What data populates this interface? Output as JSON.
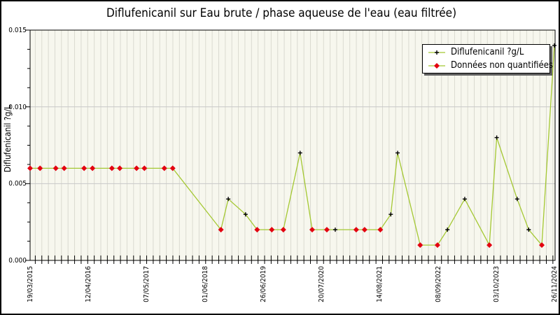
{
  "window": {
    "border_color": "#000000",
    "background": "#ffffff"
  },
  "colors": {
    "plot_background": "#f7f7ee",
    "stripe": "#dadad0",
    "grid": "#c8c8c8",
    "frame": "#000000",
    "line": "#a4c832",
    "marker_quantified": "#000000",
    "marker_non_quantified": "#e30010",
    "legend_shadow": "#606060",
    "text": "#000000"
  },
  "chart_data": {
    "type": "line",
    "title": "Diflufenicanil sur Eau brute / phase aqueuse de l'eau (eau filtrée)",
    "ylabel": "Diflufenicanil ?g/L",
    "xlabel": "",
    "ylim": [
      0,
      0.015
    ],
    "ytick_values": [
      0,
      0.005,
      0.01,
      0.015
    ],
    "ytick_labels": [
      "0.000",
      "0.005",
      "0.010",
      "0.015"
    ],
    "y_minor_step": 0.00125,
    "xtick_labels": [
      "19/03/2015",
      "12/04/2016",
      "07/05/2017",
      "01/06/2018",
      "26/06/2019",
      "20/07/2020",
      "14/08/2021",
      "08/09/2022",
      "03/10/2023",
      "26/11/2024"
    ],
    "x_axis_start": "19/03/2015",
    "x_axis_end": "26/11/2024",
    "grid": "horizontal-major + vertical-minor-stripes",
    "legend_position": "top-right",
    "legend": [
      {
        "label": "Diflufenicanil ?g/L",
        "marker": "black-plus-on-green-line"
      },
      {
        "label": "Données non quantifiées",
        "marker": "red-diamond-on-green-line"
      }
    ],
    "series_note": "x is fractional position along the time axis from 19/03/2015 (0) to 26/11/2024 (1); v is concentration in ?g/L; q=true means quantified value (black marker), q=false means non-quantified (red diamond marker)",
    "points": [
      {
        "x": 0.0,
        "v": 0.006,
        "q": false
      },
      {
        "x": 0.019,
        "v": 0.006,
        "q": false
      },
      {
        "x": 0.049,
        "v": 0.006,
        "q": false
      },
      {
        "x": 0.065,
        "v": 0.006,
        "q": false
      },
      {
        "x": 0.103,
        "v": 0.006,
        "q": false
      },
      {
        "x": 0.119,
        "v": 0.006,
        "q": false
      },
      {
        "x": 0.156,
        "v": 0.006,
        "q": false
      },
      {
        "x": 0.171,
        "v": 0.006,
        "q": false
      },
      {
        "x": 0.203,
        "v": 0.006,
        "q": false
      },
      {
        "x": 0.218,
        "v": 0.006,
        "q": false
      },
      {
        "x": 0.256,
        "v": 0.006,
        "q": false
      },
      {
        "x": 0.272,
        "v": 0.006,
        "q": false
      },
      {
        "x": 0.364,
        "v": 0.002,
        "q": false
      },
      {
        "x": 0.378,
        "v": 0.004,
        "q": true
      },
      {
        "x": 0.411,
        "v": 0.003,
        "q": true
      },
      {
        "x": 0.433,
        "v": 0.002,
        "q": false
      },
      {
        "x": 0.461,
        "v": 0.002,
        "q": false
      },
      {
        "x": 0.483,
        "v": 0.002,
        "q": false
      },
      {
        "x": 0.515,
        "v": 0.007,
        "q": true
      },
      {
        "x": 0.538,
        "v": 0.002,
        "q": false
      },
      {
        "x": 0.566,
        "v": 0.002,
        "q": false
      },
      {
        "x": 0.582,
        "v": 0.002,
        "q": true
      },
      {
        "x": 0.622,
        "v": 0.002,
        "q": false
      },
      {
        "x": 0.638,
        "v": 0.002,
        "q": false
      },
      {
        "x": 0.668,
        "v": 0.002,
        "q": false
      },
      {
        "x": 0.688,
        "v": 0.003,
        "q": true
      },
      {
        "x": 0.701,
        "v": 0.007,
        "q": true
      },
      {
        "x": 0.744,
        "v": 0.001,
        "q": false
      },
      {
        "x": 0.777,
        "v": 0.001,
        "q": false
      },
      {
        "x": 0.796,
        "v": 0.002,
        "q": true
      },
      {
        "x": 0.829,
        "v": 0.004,
        "q": true
      },
      {
        "x": 0.876,
        "v": 0.001,
        "q": false
      },
      {
        "x": 0.89,
        "v": 0.008,
        "q": true
      },
      {
        "x": 0.929,
        "v": 0.004,
        "q": true
      },
      {
        "x": 0.951,
        "v": 0.002,
        "q": true
      },
      {
        "x": 0.976,
        "v": 0.001,
        "q": false
      },
      {
        "x": 1.0,
        "v": 0.014,
        "q": true
      }
    ]
  }
}
